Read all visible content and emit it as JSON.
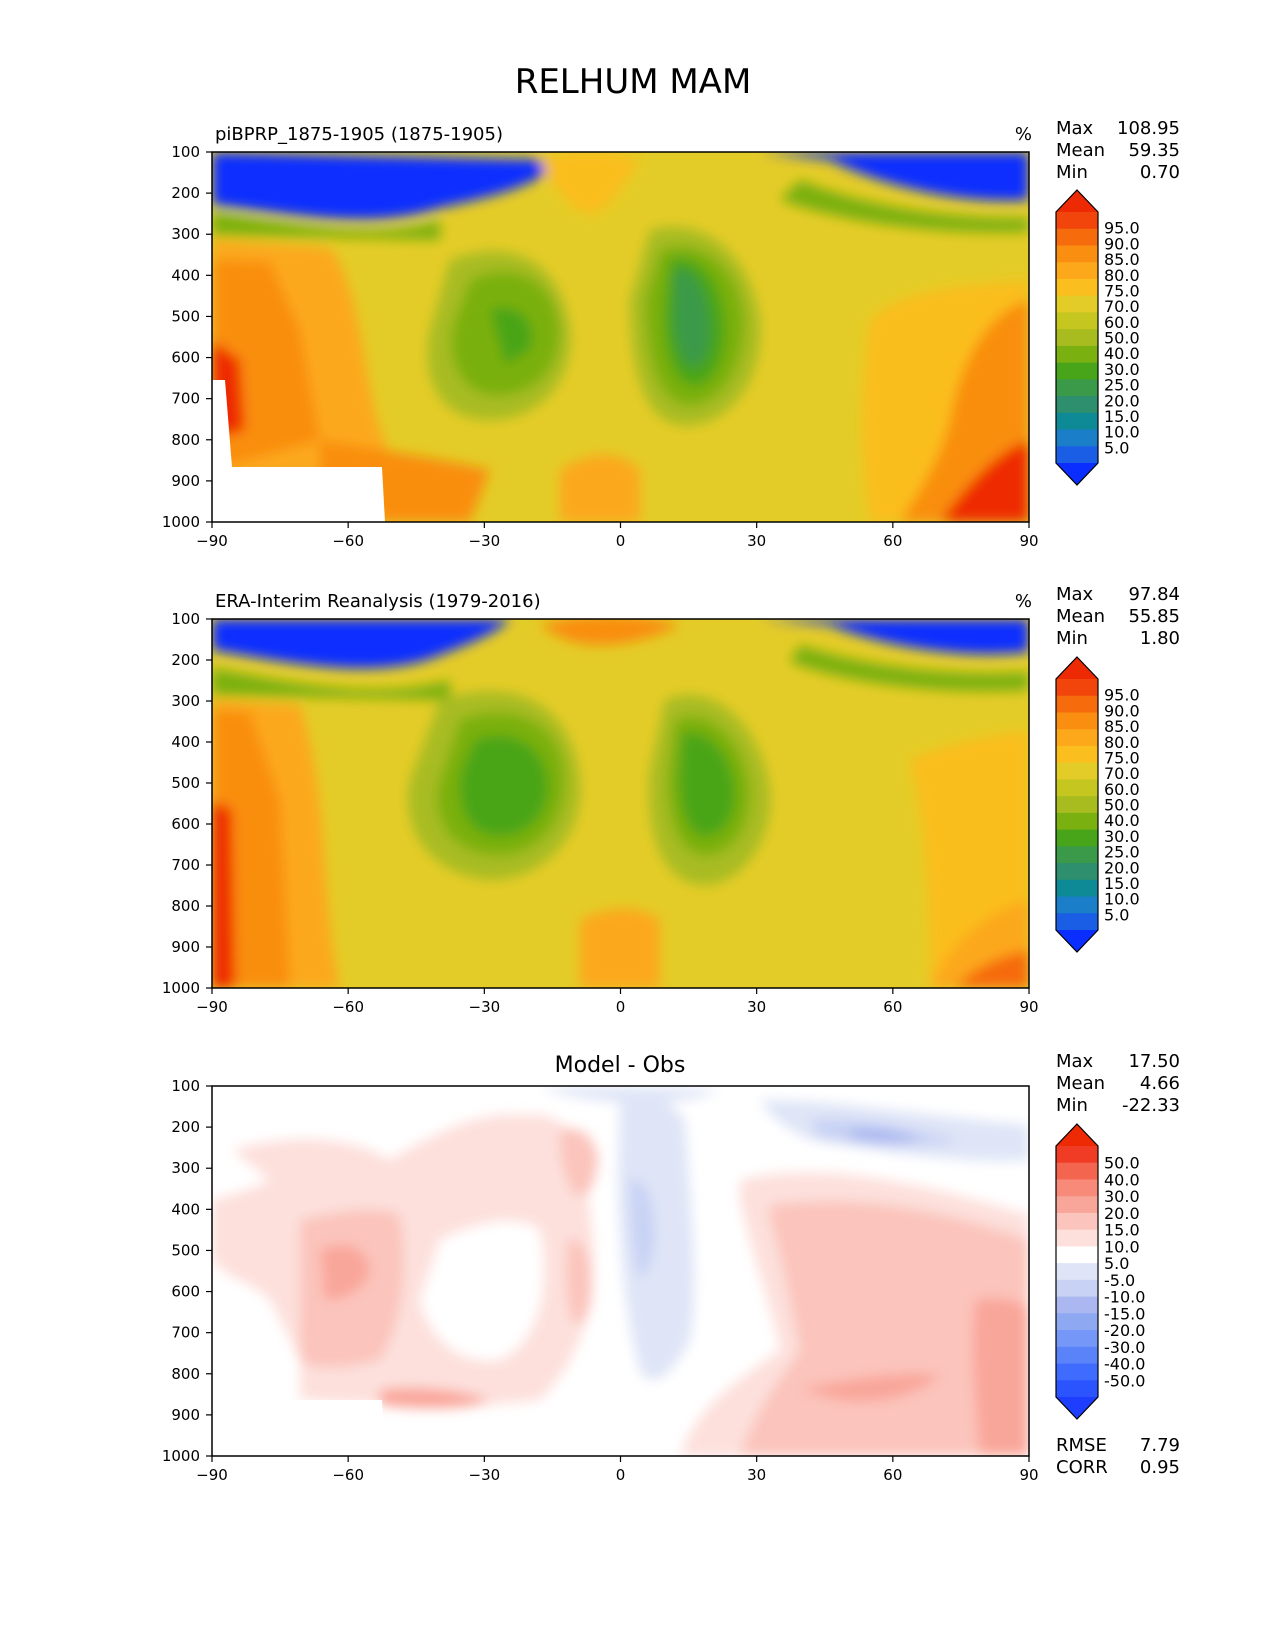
{
  "figure": {
    "title": "RELHUM MAM"
  },
  "colors": {
    "abs_levels": [
      "#0a2eff",
      "#1a5ee6",
      "#1a7fc8",
      "#0e8a96",
      "#2e8f6e",
      "#3a9a4a",
      "#48a519",
      "#7ab010",
      "#a8bc20",
      "#c6c621",
      "#e4cc28",
      "#fabe1e",
      "#fca81a",
      "#f98e10",
      "#f66b0c",
      "#f1450c",
      "#ee2a05"
    ],
    "diff_levels": [
      "#1e3eff",
      "#2b54ff",
      "#3f6cff",
      "#5a83fa",
      "#7597f7",
      "#8ea8f2",
      "#aab7f0",
      "#c8d2f4",
      "#dfe5f7",
      "#ffffff",
      "#fde0dc",
      "#fbc4bc",
      "#f9a69a",
      "#f88a7a",
      "#f4654f",
      "#f03c24",
      "#ee2a05"
    ]
  },
  "chart_data": [
    {
      "type": "heatmap",
      "title": "piBPRP_1875-1905 (1875-1905)",
      "units": "%",
      "stats": {
        "max_label": "Max",
        "max": "108.95",
        "mean_label": "Mean",
        "mean": "59.35",
        "min_label": "Min",
        "min": "0.70"
      },
      "colorbar_labels": [
        "95.0",
        "90.0",
        "85.0",
        "80.0",
        "75.0",
        "70.0",
        "60.0",
        "50.0",
        "40.0",
        "30.0",
        "25.0",
        "20.0",
        "15.0",
        "10.0",
        "5.0"
      ],
      "x_ticks": [
        "−90",
        "−60",
        "−30",
        "0",
        "30",
        "60",
        "90"
      ],
      "y_ticks": [
        "100",
        "200",
        "300",
        "400",
        "500",
        "600",
        "700",
        "800",
        "900",
        "1000"
      ],
      "xlim": [
        -90,
        90
      ],
      "ylim": [
        1000,
        100
      ],
      "missing_region": "below-surface (Antarctica)"
    },
    {
      "type": "heatmap",
      "title": "ERA-Interim Reanalysis (1979-2016)",
      "units": "%",
      "stats": {
        "max_label": "Max",
        "max": "97.84",
        "mean_label": "Mean",
        "mean": "55.85",
        "min_label": "Min",
        "min": "1.80"
      },
      "colorbar_labels": [
        "95.0",
        "90.0",
        "85.0",
        "80.0",
        "75.0",
        "70.0",
        "60.0",
        "50.0",
        "40.0",
        "30.0",
        "25.0",
        "20.0",
        "15.0",
        "10.0",
        "5.0"
      ],
      "x_ticks": [
        "−90",
        "−60",
        "−30",
        "0",
        "30",
        "60",
        "90"
      ],
      "y_ticks": [
        "100",
        "200",
        "300",
        "400",
        "500",
        "600",
        "700",
        "800",
        "900",
        "1000"
      ],
      "xlim": [
        -90,
        90
      ],
      "ylim": [
        1000,
        100
      ]
    },
    {
      "type": "heatmap",
      "title": "Model - Obs",
      "units": "",
      "stats": {
        "max_label": "Max",
        "max": "17.50",
        "mean_label": "Mean",
        "mean": "4.66",
        "min_label": "Min",
        "min": "-22.33"
      },
      "colorbar_labels": [
        "50.0",
        "40.0",
        "30.0",
        "20.0",
        "15.0",
        "10.0",
        "5.0",
        "-5.0",
        "-10.0",
        "-15.0",
        "-20.0",
        "-30.0",
        "-40.0",
        "-50.0"
      ],
      "x_ticks": [
        "−90",
        "−60",
        "−30",
        "0",
        "30",
        "60",
        "90"
      ],
      "y_ticks": [
        "100",
        "200",
        "300",
        "400",
        "500",
        "600",
        "700",
        "800",
        "900",
        "1000"
      ],
      "xlim": [
        -90,
        90
      ],
      "ylim": [
        1000,
        100
      ],
      "metrics": {
        "rmse_label": "RMSE",
        "rmse": "7.79",
        "corr_label": "CORR",
        "corr": "0.95"
      }
    }
  ]
}
